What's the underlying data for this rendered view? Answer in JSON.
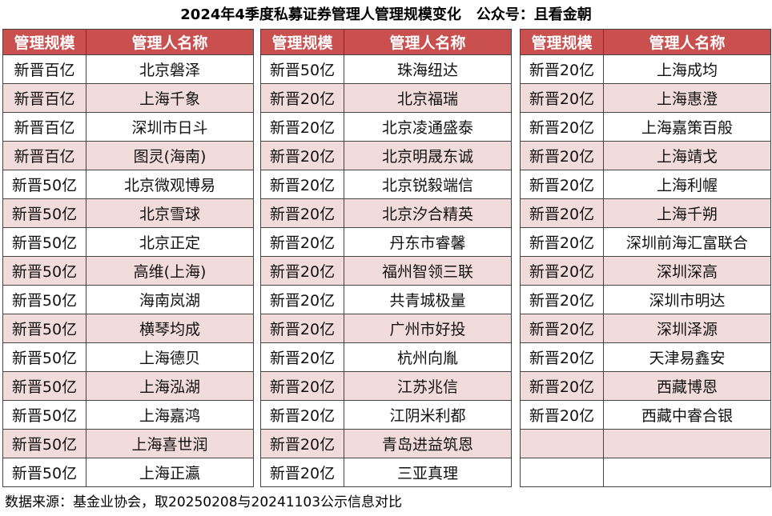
{
  "title": "2024年4季度私募证券管理人管理规模变化   公众号：且看金朝",
  "tables": [
    {
      "header": [
        "管理规模",
        "管理人名称"
      ],
      "rows": [
        [
          "新晋百亿",
          "北京磐泽"
        ],
        [
          "新晋百亿",
          "上海千象"
        ],
        [
          "新晋百亿",
          "深圳市日斗"
        ],
        [
          "新晋百亿",
          "图灵(海南)"
        ],
        [
          "新晋50亿",
          "北京微观博易"
        ],
        [
          "新晋50亿",
          "北京雪球"
        ],
        [
          "新晋50亿",
          "北京正定"
        ],
        [
          "新晋50亿",
          "高维(上海)"
        ],
        [
          "新晋50亿",
          "海南岚湖"
        ],
        [
          "新晋50亿",
          "横琴均成"
        ],
        [
          "新晋50亿",
          "上海德贝"
        ],
        [
          "新晋50亿",
          "上海泓湖"
        ],
        [
          "新晋50亿",
          "上海嘉鸿"
        ],
        [
          "新晋50亿",
          "上海喜世润"
        ],
        [
          "新晋50亿",
          "上海正瀛"
        ]
      ]
    },
    {
      "header": [
        "管理规模",
        "管理人名称"
      ],
      "rows": [
        [
          "新晋50亿",
          "珠海纽达"
        ],
        [
          "新晋20亿",
          "北京福瑞"
        ],
        [
          "新晋20亿",
          "北京凌通盛泰"
        ],
        [
          "新晋20亿",
          "北京明晟东诚"
        ],
        [
          "新晋20亿",
          "北京锐毅端信"
        ],
        [
          "新晋20亿",
          "北京汐合精英"
        ],
        [
          "新晋20亿",
          "丹东市睿馨"
        ],
        [
          "新晋20亿",
          "福州智领三联"
        ],
        [
          "新晋20亿",
          "共青城极量"
        ],
        [
          "新晋20亿",
          "广州市好投"
        ],
        [
          "新晋20亿",
          "杭州向胤"
        ],
        [
          "新晋20亿",
          "江苏兆信"
        ],
        [
          "新晋20亿",
          "江阴米利都"
        ],
        [
          "新晋20亿",
          "青岛进益筑恩"
        ],
        [
          "新晋20亿",
          "三亚真理"
        ]
      ]
    },
    {
      "header": [
        "管理规模",
        "管理人名称"
      ],
      "rows": [
        [
          "新晋20亿",
          "上海成均"
        ],
        [
          "新晋20亿",
          "上海惠澄"
        ],
        [
          "新晋20亿",
          "上海嘉策百般"
        ],
        [
          "新晋20亿",
          "上海靖戈"
        ],
        [
          "新晋20亿",
          "上海利幄"
        ],
        [
          "新晋20亿",
          "上海千朔"
        ],
        [
          "新晋20亿",
          "深圳前海汇富联合"
        ],
        [
          "新晋20亿",
          "深圳深高"
        ],
        [
          "新晋20亿",
          "深圳市明达"
        ],
        [
          "新晋20亿",
          "深圳泽源"
        ],
        [
          "新晋20亿",
          "天津易鑫安"
        ],
        [
          "新晋20亿",
          "西藏博恩"
        ],
        [
          "新晋20亿",
          "西藏中睿合银"
        ]
      ]
    }
  ],
  "footer": "数据来源：基金业协会，取20250208与20241103公示信息对比"
}
